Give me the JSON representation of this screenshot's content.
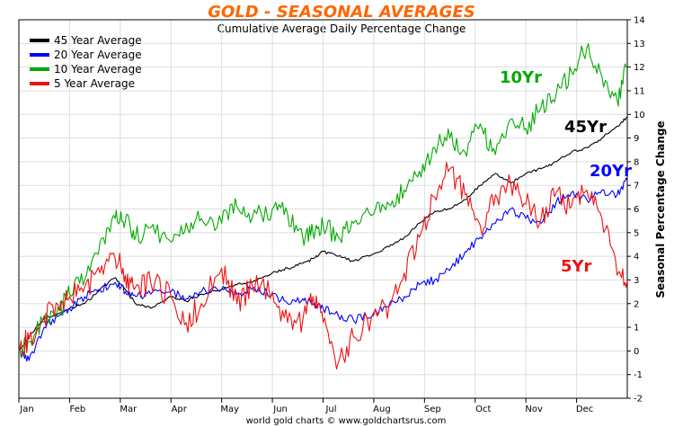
{
  "chart_data": {
    "type": "line",
    "title": "GOLD - SEASONAL AVERAGES",
    "subtitle": "Cumulative Average Daily Percentage Change",
    "ylabel": "Seasonal Percentage Change",
    "credit": "world gold charts © www.goldchartsrus.com",
    "title_color": "#ff6600",
    "ylim": [
      -2,
      14
    ],
    "yticks": [
      -2,
      -1,
      0,
      1,
      2,
      3,
      4,
      5,
      6,
      7,
      8,
      9,
      10,
      11,
      12,
      13,
      14
    ],
    "months": [
      "Jan",
      "Feb",
      "Mar",
      "Apr",
      "May",
      "Jun",
      "Jul",
      "Aug",
      "Sep",
      "Oct",
      "Nov",
      "Dec"
    ],
    "x_range": [
      0,
      12
    ],
    "grid": true,
    "legend_position": "top-left",
    "series": [
      {
        "name": "45 Year Average",
        "short": "45Yr",
        "color": "#000000",
        "x": [
          0,
          0.2,
          0.5,
          0.8,
          1.0,
          1.3,
          1.6,
          1.9,
          2.1,
          2.3,
          2.6,
          3.0,
          3.3,
          3.6,
          4.0,
          4.3,
          4.6,
          5.0,
          5.3,
          5.6,
          5.8,
          6.0,
          6.3,
          6.6,
          7.0,
          7.3,
          7.6,
          7.9,
          8.2,
          8.5,
          8.8,
          9.1,
          9.4,
          9.7,
          10.0,
          10.3,
          10.6,
          10.9,
          11.2,
          11.5,
          11.8,
          12.0
        ],
        "values": [
          0,
          0.6,
          1.4,
          1.6,
          1.8,
          2.0,
          2.6,
          3.1,
          2.6,
          2.0,
          1.8,
          2.3,
          2.1,
          2.4,
          2.6,
          2.8,
          2.9,
          3.3,
          3.5,
          3.7,
          3.9,
          4.2,
          4.0,
          3.8,
          4.1,
          4.4,
          4.8,
          5.4,
          5.9,
          6.0,
          6.4,
          7.0,
          7.5,
          7.1,
          7.5,
          7.7,
          8.0,
          8.4,
          8.6,
          9.0,
          9.5,
          9.9
        ]
      },
      {
        "name": "20 Year Average",
        "short": "20Yr",
        "color": "#0000ff",
        "x": [
          0,
          0.2,
          0.5,
          0.8,
          1.0,
          1.3,
          1.6,
          1.9,
          2.1,
          2.3,
          2.6,
          3.0,
          3.3,
          3.6,
          4.0,
          4.3,
          4.6,
          5.0,
          5.3,
          5.6,
          5.8,
          6.0,
          6.3,
          6.6,
          7.0,
          7.3,
          7.6,
          7.9,
          8.2,
          8.5,
          8.8,
          9.1,
          9.4,
          9.7,
          10.0,
          10.3,
          10.6,
          10.9,
          11.2,
          11.5,
          11.8,
          12.0
        ],
        "values": [
          0,
          -0.4,
          1.0,
          1.5,
          1.8,
          2.3,
          2.6,
          2.9,
          2.5,
          2.3,
          2.4,
          2.5,
          2.2,
          2.5,
          2.6,
          2.4,
          2.6,
          2.4,
          2.0,
          2.2,
          2.0,
          1.8,
          1.5,
          1.3,
          1.6,
          1.9,
          2.3,
          2.8,
          3.0,
          3.4,
          4.2,
          4.8,
          5.4,
          6.0,
          5.6,
          5.4,
          6.3,
          6.7,
          6.4,
          6.8,
          6.6,
          7.2
        ]
      },
      {
        "name": "10 Year Average",
        "short": "10Yr",
        "color": "#00aa00",
        "x": [
          0,
          0.2,
          0.5,
          0.8,
          1.0,
          1.3,
          1.6,
          1.9,
          2.1,
          2.3,
          2.6,
          3.0,
          3.3,
          3.6,
          4.0,
          4.3,
          4.6,
          5.0,
          5.3,
          5.6,
          5.8,
          6.0,
          6.3,
          6.6,
          7.0,
          7.3,
          7.6,
          7.9,
          8.2,
          8.5,
          8.8,
          9.1,
          9.4,
          9.7,
          10.0,
          10.3,
          10.6,
          10.9,
          11.2,
          11.5,
          11.8,
          12.0
        ],
        "values": [
          0,
          0.4,
          1.2,
          1.7,
          2.4,
          3.0,
          4.6,
          5.6,
          5.5,
          4.8,
          5.2,
          4.6,
          5.4,
          5.6,
          5.4,
          6.1,
          5.6,
          6.0,
          5.8,
          4.8,
          5.0,
          5.3,
          4.8,
          5.4,
          5.8,
          6.2,
          6.8,
          7.6,
          8.6,
          9.0,
          8.4,
          9.6,
          8.3,
          9.8,
          9.4,
          10.3,
          10.9,
          11.8,
          12.8,
          11.6,
          10.6,
          12.0
        ]
      },
      {
        "name": "5 Year Average",
        "short": "5Yr",
        "color": "#ee1111",
        "x": [
          0,
          0.2,
          0.5,
          0.8,
          1.0,
          1.3,
          1.6,
          1.9,
          2.1,
          2.3,
          2.6,
          3.0,
          3.3,
          3.6,
          4.0,
          4.3,
          4.6,
          5.0,
          5.3,
          5.6,
          5.8,
          6.0,
          6.3,
          6.6,
          7.0,
          7.3,
          7.6,
          7.9,
          8.2,
          8.5,
          8.8,
          9.1,
          9.4,
          9.7,
          10.0,
          10.3,
          10.6,
          10.9,
          11.2,
          11.5,
          11.8,
          12.0
        ],
        "values": [
          0,
          0.5,
          1.5,
          1.7,
          2.3,
          2.7,
          3.3,
          3.9,
          3.2,
          2.7,
          2.9,
          2.3,
          1.2,
          2.0,
          3.5,
          2.0,
          2.8,
          2.5,
          1.2,
          1.3,
          2.3,
          1.2,
          -0.5,
          0.6,
          1.5,
          1.9,
          3.3,
          4.8,
          6.5,
          7.7,
          6.6,
          5.3,
          6.6,
          7.1,
          6.2,
          5.6,
          6.7,
          6.1,
          6.8,
          5.6,
          3.2,
          3.0
        ]
      }
    ]
  }
}
